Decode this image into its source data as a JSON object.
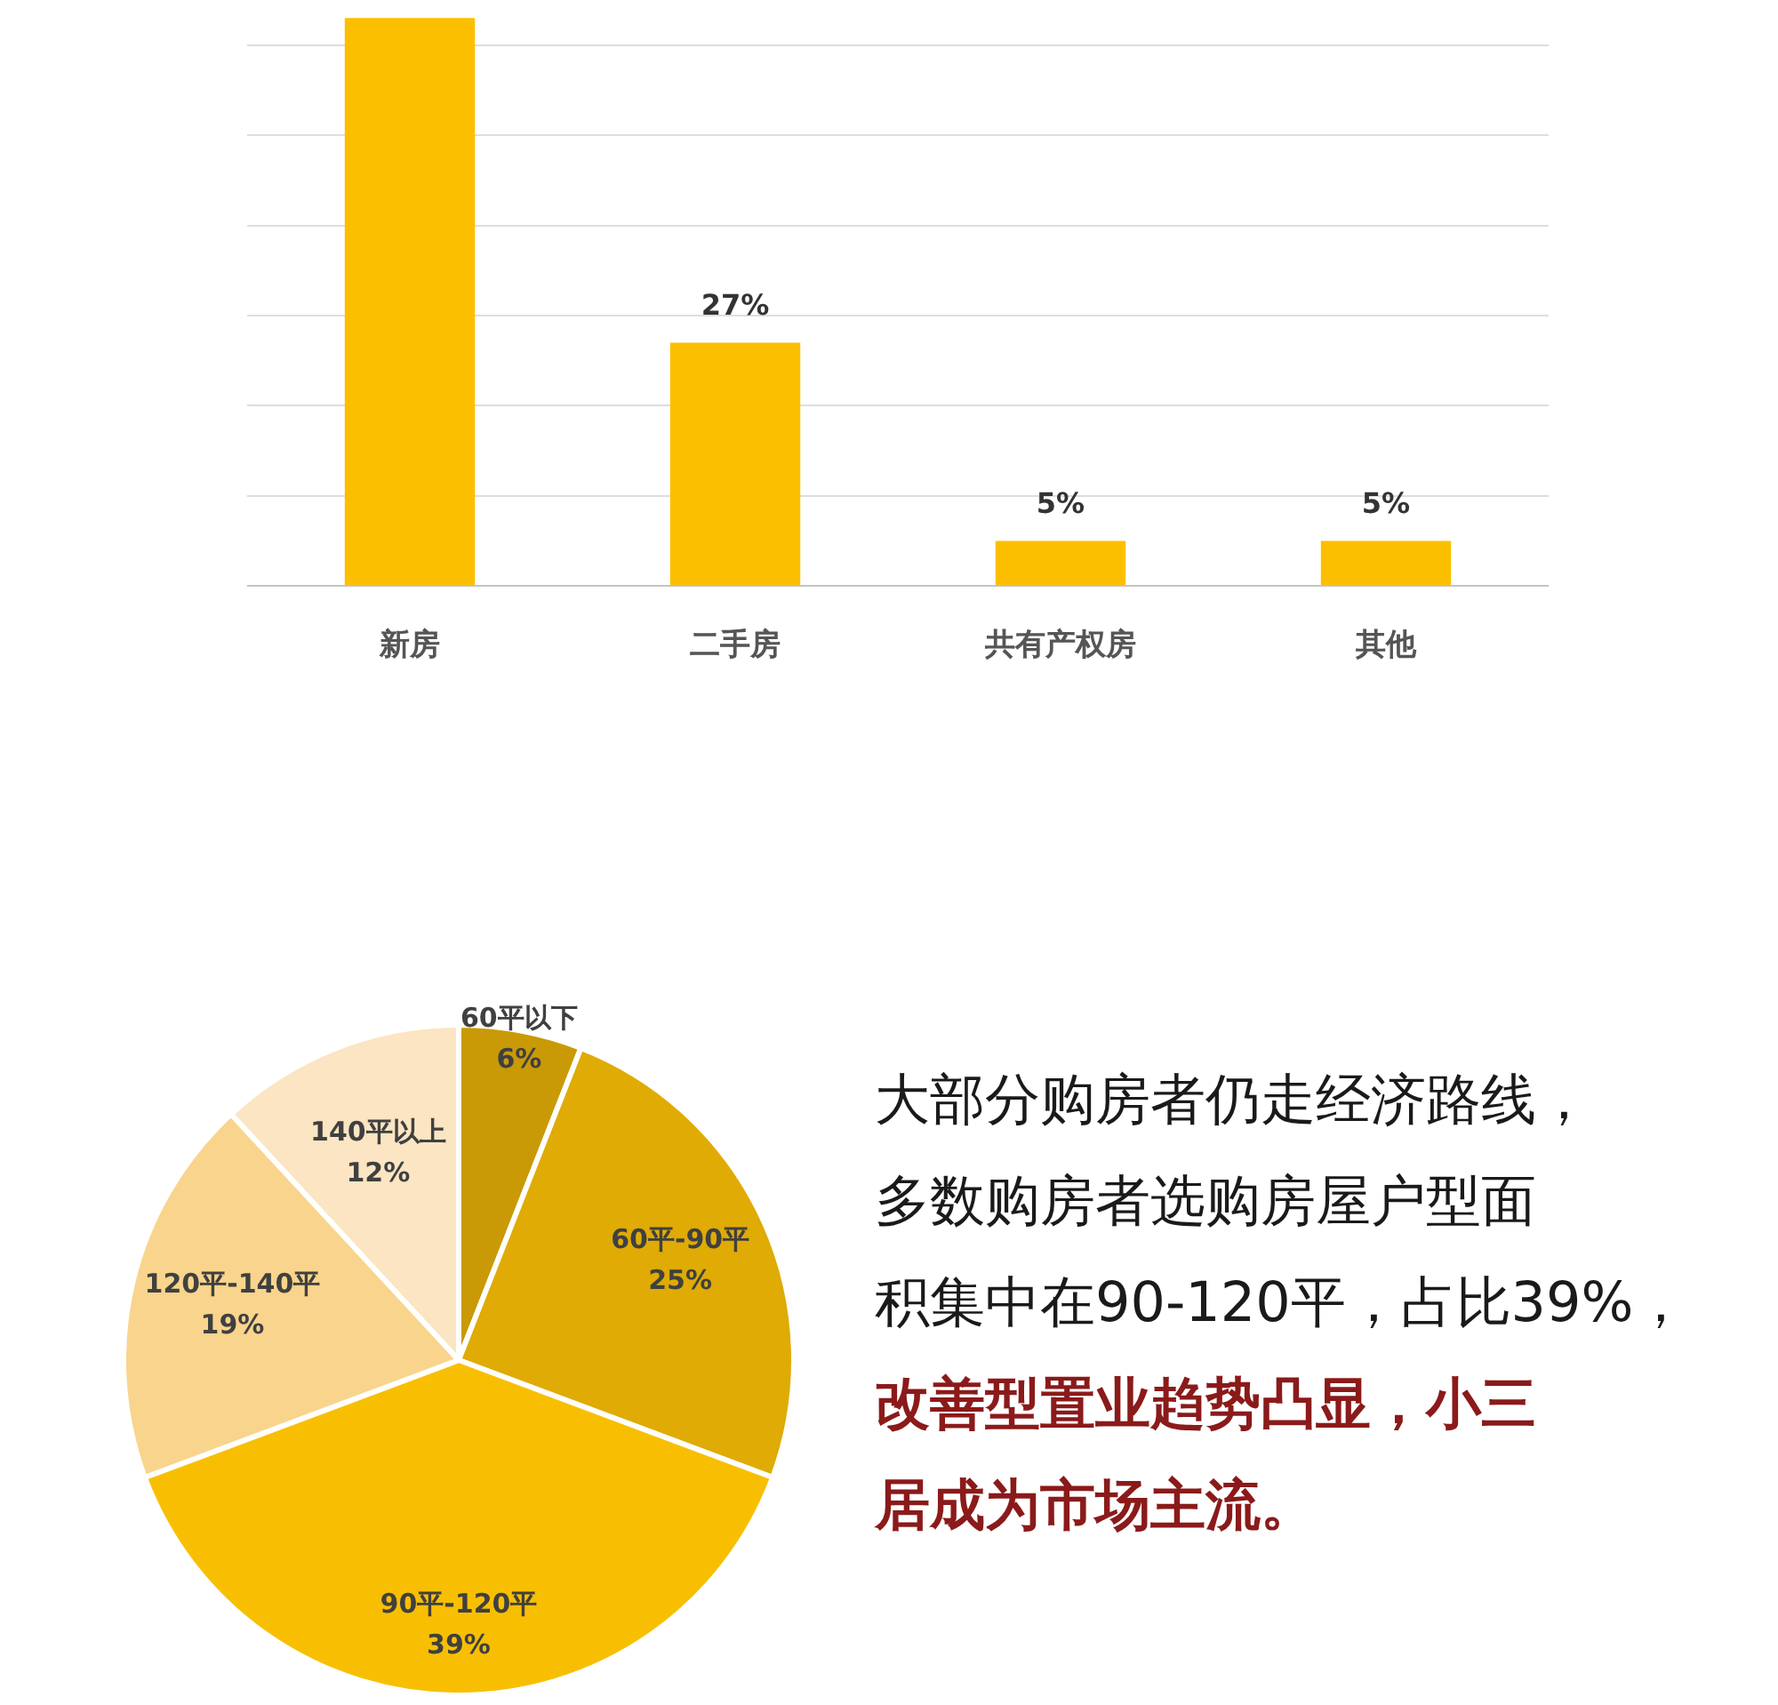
{
  "chart_data": [
    {
      "type": "bar",
      "categories": [
        "新房",
        "二手房",
        "共有产权房",
        "其他"
      ],
      "values": [
        63,
        27,
        5,
        5
      ],
      "value_labels": [
        null,
        "27%",
        "5%",
        "5%"
      ],
      "color": "#fcbf00",
      "ylim": [
        0,
        65
      ],
      "yticks": [
        {
          "value": 0,
          "label": null
        },
        {
          "value": 10,
          "label": null
        },
        {
          "value": 20,
          "label": null
        },
        {
          "value": 30,
          "label": null
        },
        {
          "value": 40,
          "label": null
        },
        {
          "value": 50,
          "label": null
        },
        {
          "value": 60,
          "label": null
        }
      ],
      "grid": "y",
      "tick_labels": "x"
    },
    {
      "type": "pie",
      "categories": [
        "60平以下",
        "60平-90平",
        "90平-120平",
        "120平-140平",
        "140平以上"
      ],
      "values": [
        6,
        25,
        39,
        19,
        12
      ],
      "value_labels": [
        "6%",
        "25%",
        "39%",
        "19%",
        "12%"
      ],
      "colors": [
        "#c99a06",
        "#dfab04",
        "#f8bf02",
        "#f9d48c",
        "#fbe5c2"
      ]
    },
    {
      "type": "other",
      "annotations": [
        "大部分购房者仍走经济路线，",
        "多数购房者选购房屋户型面",
        "积集中在90-120平，占比39%，",
        "改善型置业趋势凸显，小三",
        "居成为市场主流。"
      ],
      "colors": [
        "#1a1a1a",
        "#1a1a1a",
        "#1a1a1a",
        "#8b1a1a",
        "#8b1a1a"
      ]
    }
  ]
}
